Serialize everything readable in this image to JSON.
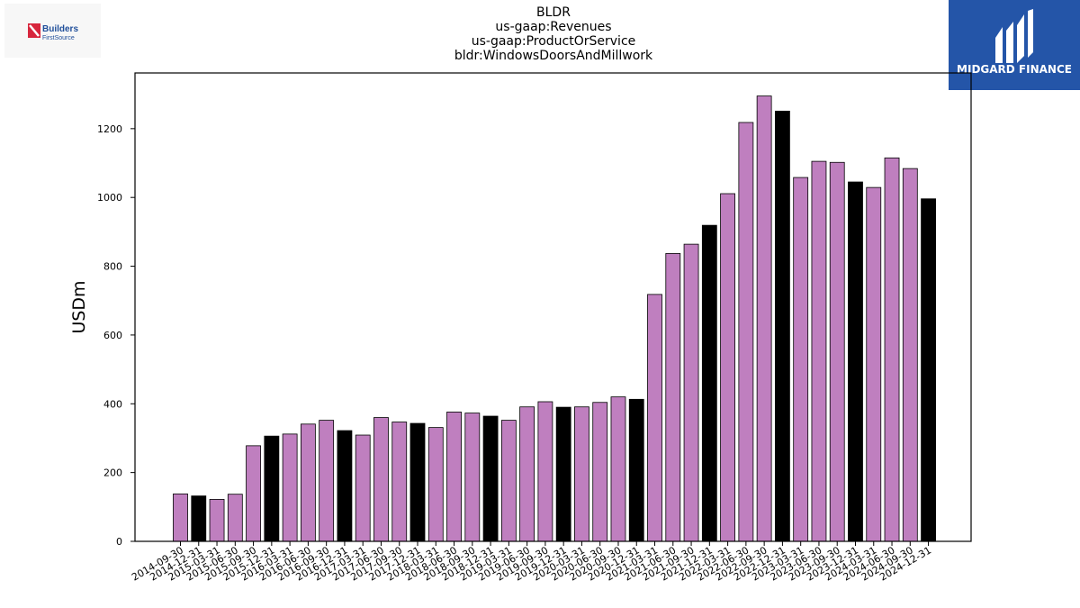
{
  "header": {
    "title_lines": [
      "BLDR",
      "us-gaap:Revenues",
      "us-gaap:ProductOrService",
      "bldr:WindowsDoorsAndMillwork"
    ]
  },
  "logos": {
    "left": {
      "line1": "Builders",
      "line2": "FirstSource"
    },
    "right": {
      "text": "MIDGARD FINANCE"
    }
  },
  "colors": {
    "bar_default": "#bf7fbf",
    "bar_q4": "#000000",
    "brand_right": "#2455a8",
    "brand_left_red": "#d7263d",
    "brand_left_blue": "#1f4e9a"
  },
  "chart_data": {
    "type": "bar",
    "ylabel": "USDm",
    "xlabel": "",
    "ylim": [
      0,
      1360
    ],
    "yticks": [
      0,
      200,
      400,
      600,
      800,
      1000,
      1200
    ],
    "grid": false,
    "categories": [
      "2014-09-30",
      "2014-12-31",
      "2015-03-31",
      "2015-06-30",
      "2015-09-30",
      "2015-12-31",
      "2016-03-31",
      "2016-06-30",
      "2016-09-30",
      "2016-12-31",
      "2017-03-31",
      "2017-06-30",
      "2017-09-30",
      "2017-12-31",
      "2018-03-31",
      "2018-06-30",
      "2018-09-30",
      "2018-12-31",
      "2019-03-31",
      "2019-06-30",
      "2019-09-30",
      "2019-12-31",
      "2020-03-31",
      "2020-06-30",
      "2020-09-30",
      "2020-12-31",
      "2021-03-31",
      "2021-06-30",
      "2021-09-30",
      "2021-12-31",
      "2022-03-31",
      "2022-06-30",
      "2022-09-30",
      "2022-12-31",
      "2023-03-31",
      "2023-06-30",
      "2023-09-30",
      "2023-12-31",
      "2024-03-31",
      "2024-06-30",
      "2024-09-30",
      "2024-12-31"
    ],
    "values": [
      138,
      132,
      122,
      137,
      278,
      306,
      312,
      341,
      352,
      322,
      309,
      360,
      347,
      343,
      331,
      376,
      373,
      364,
      352,
      391,
      406,
      390,
      391,
      404,
      420,
      413,
      718,
      837,
      864,
      919,
      1011,
      1218,
      1295,
      1251,
      1058,
      1105,
      1102,
      1045,
      1029,
      1115,
      1084,
      996
    ],
    "highlight": [
      false,
      true,
      false,
      false,
      false,
      true,
      false,
      false,
      false,
      true,
      false,
      false,
      false,
      true,
      false,
      false,
      false,
      true,
      false,
      false,
      false,
      true,
      false,
      false,
      false,
      true,
      false,
      false,
      false,
      true,
      false,
      false,
      false,
      true,
      false,
      false,
      false,
      true,
      false,
      false,
      false,
      true
    ]
  }
}
